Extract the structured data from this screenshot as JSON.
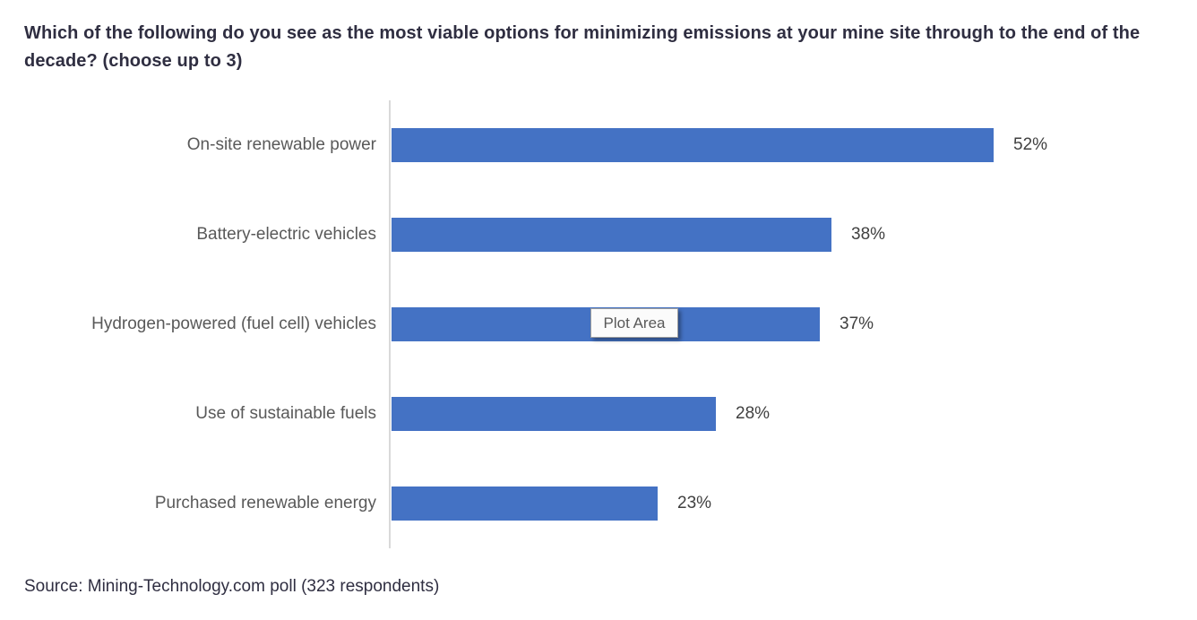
{
  "page": {
    "tooltip_label": "Plot Area",
    "source_note": "Source: Mining-Technology.com poll (323 respondents)"
  },
  "chart_data": {
    "type": "bar",
    "orientation": "horizontal",
    "title": "Which of the following do you see as the most viable options for minimizing emissions at your mine site through to the end of the decade? (choose up to 3)",
    "categories": [
      "On-site renewable power",
      "Battery-electric vehicles",
      "Hydrogen-powered (fuel cell) vehicles",
      "Use of sustainable fuels",
      "Purchased renewable energy"
    ],
    "values": [
      52,
      38,
      37,
      28,
      23
    ],
    "value_suffix": "%",
    "data_labels": true,
    "grid": false,
    "legend": "none",
    "xlabel": "",
    "ylabel": "",
    "colors": {
      "bar": "#4472C4",
      "title_text": "#2F2E41",
      "category_text": "#595959",
      "value_text": "#404040",
      "axis_line": "#D9D9D9"
    }
  }
}
